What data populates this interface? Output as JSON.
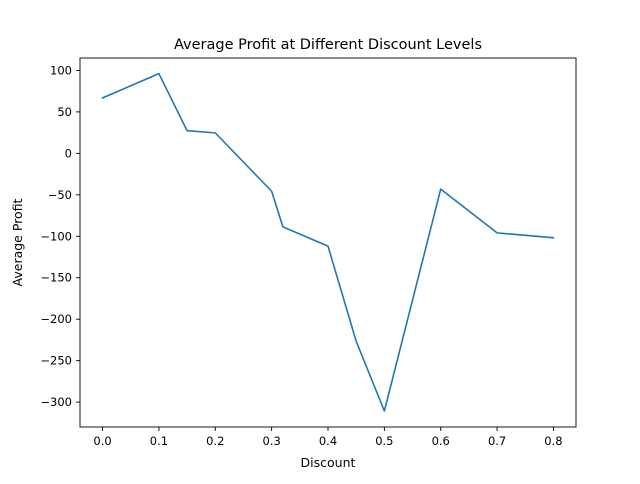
{
  "chart_data": {
    "type": "line",
    "title": "Average Profit at Different Discount Levels",
    "xlabel": "Discount",
    "ylabel": "Average Profit",
    "x": [
      0.0,
      0.1,
      0.15,
      0.2,
      0.3,
      0.32,
      0.4,
      0.45,
      0.5,
      0.6,
      0.7,
      0.8
    ],
    "series": [
      {
        "values": [
          66.9,
          96.1,
          27.3,
          24.7,
          -45.7,
          -88.6,
          -111.9,
          -226.6,
          -310.7,
          -43.1,
          -95.9,
          -101.8
        ]
      }
    ],
    "xlim": [
      -0.04,
      0.84
    ],
    "ylim": [
      -330,
      115
    ],
    "xticks": [
      "0.0",
      "0.1",
      "0.2",
      "0.3",
      "0.4",
      "0.5",
      "0.6",
      "0.7",
      "0.8"
    ],
    "yticks": [
      "100",
      "50",
      "0",
      "−50",
      "−100",
      "−150",
      "−200",
      "−250",
      "−300"
    ],
    "grid": false,
    "legend": "none",
    "line_color": "#1f77b4"
  }
}
